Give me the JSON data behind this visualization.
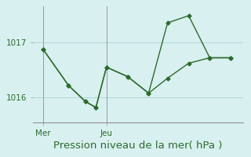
{
  "title": "Pression niveau de la mer( hPa )",
  "bg_color": "#d8f0f0",
  "grid_color": "#b0d8d8",
  "line_color": "#2d6b2d",
  "yticks": [
    1016,
    1017
  ],
  "ylim": [
    1015.55,
    1017.65
  ],
  "xlim": [
    -0.2,
    9.8
  ],
  "xtick_positions": [
    0.3,
    3.3
  ],
  "xtick_labels": [
    "Mer",
    "Jeu"
  ],
  "series1_x": [
    0.3,
    1.5,
    2.3,
    2.8,
    3.3,
    4.3,
    5.3,
    6.2,
    7.2,
    8.2,
    9.2
  ],
  "series1_y": [
    1016.87,
    1016.22,
    1015.93,
    1015.82,
    1016.55,
    1016.38,
    1016.08,
    1016.35,
    1016.62,
    1016.72,
    1016.72
  ],
  "series2_x": [
    0.3,
    1.5,
    2.3,
    2.8,
    3.3,
    4.3,
    5.3,
    6.2,
    7.2,
    8.2,
    9.2
  ],
  "series2_y": [
    1016.87,
    1016.22,
    1015.93,
    1015.82,
    1016.55,
    1016.38,
    1016.08,
    1017.35,
    1017.48,
    1016.72,
    1016.72
  ],
  "vline_positions": [
    0.3,
    3.3
  ],
  "tick_fontsize": 7.5,
  "title_fontsize": 9.5
}
